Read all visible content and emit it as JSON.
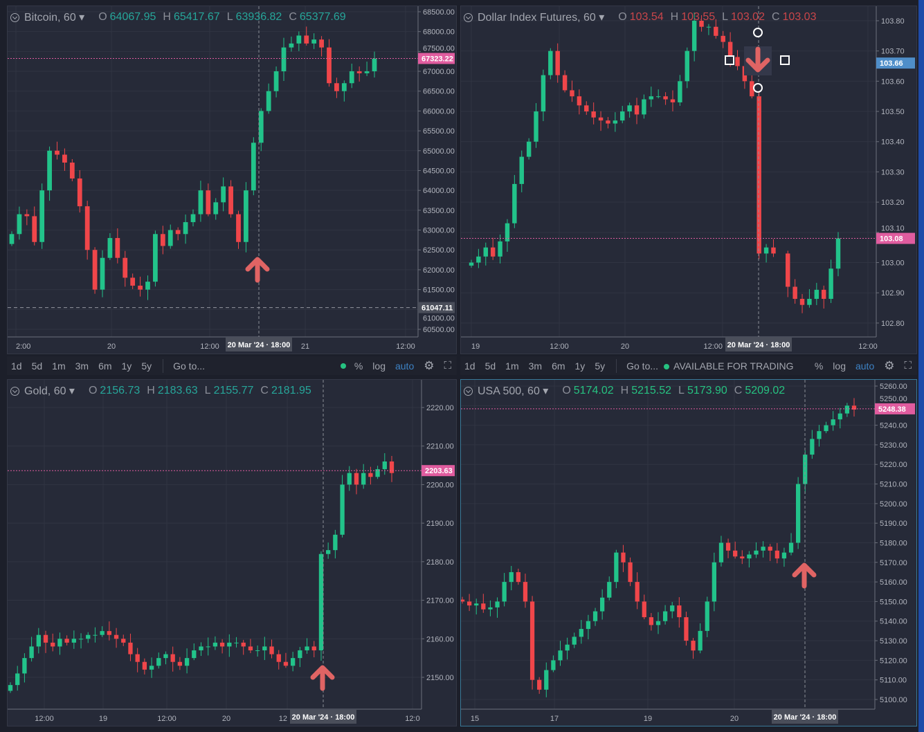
{
  "colors": {
    "up": "#26a69a",
    "up_body": "#22c38a",
    "down": "#f0464a",
    "price_label": "#e05c9f",
    "price_label_blue": "#4f8ec9",
    "arrow": "#e06464",
    "bg": "#262a38"
  },
  "toolbar": {
    "ranges": [
      "1d",
      "5d",
      "1m",
      "3m",
      "6m",
      "1y",
      "5y"
    ],
    "goto": "Go to...",
    "status": "AVAILABLE FOR TRADING",
    "percent": "%",
    "log": "log",
    "auto": "auto",
    "settings_icon": "gear-icon",
    "fullscreen_icon": "fullscreen-icon"
  },
  "crosshair_label": "20 Mar '24 · 18:00",
  "charts": [
    {
      "symbol": "Bitcoin, 60",
      "o": "64067.95",
      "h": "65417.67",
      "l": "63936.82",
      "c": "65377.69",
      "ohlc_color": "#26a69a",
      "price_ticks": [
        "68500.00",
        "68000.00",
        "67500.00",
        "67000.00",
        "66500.00",
        "66000.00",
        "65500.00",
        "65000.00",
        "64500.00",
        "64000.00",
        "63500.00",
        "63000.00",
        "62500.00",
        "62000.00",
        "61500.00",
        "61000.00",
        "60500.00"
      ],
      "time_ticks": [
        "2:00",
        "20",
        "12:00",
        "21",
        "12:00"
      ],
      "last_price": "67323.22",
      "marker_price": "61047.11",
      "annotation": "arrow-up",
      "ylim": [
        60308,
        68639
      ],
      "closes": [
        62900,
        63400,
        63350,
        62700,
        64000,
        65000,
        64900,
        64700,
        64300,
        63600,
        62500,
        61500,
        62300,
        62800,
        62300,
        61800,
        61600,
        61500,
        61700,
        62900,
        62600,
        63000,
        62900,
        63200,
        63400,
        64000,
        63400,
        63700,
        64100,
        63400,
        62700,
        64000,
        65200,
        66000,
        66500,
        67000,
        67600,
        67700,
        67900,
        67700,
        67800,
        67600,
        66700,
        66500,
        66700,
        67000,
        66950,
        67000,
        67320
      ]
    },
    {
      "symbol": "Dollar Index Futures, 60",
      "o": "103.54",
      "h": "103.55",
      "l": "103.02",
      "c": "103.03",
      "ohlc_color": "#c9464a",
      "price_ticks": [
        "103.80",
        "103.70",
        "103.60",
        "103.50",
        "103.40",
        "103.30",
        "103.20",
        "103.10",
        "103.00",
        "102.90",
        "102.80"
      ],
      "time_ticks": [
        "19",
        "12:00",
        "20",
        "12:00",
        "12:00"
      ],
      "last_price": "103.08",
      "crosshair_price": "103.66",
      "annotation": "arrow-down",
      "ylim": [
        102.754,
        103.848
      ],
      "closes": [
        103.0,
        103.02,
        103.05,
        103.02,
        103.07,
        103.13,
        103.26,
        103.35,
        103.4,
        103.5,
        103.62,
        103.7,
        103.62,
        103.57,
        103.55,
        103.52,
        103.5,
        103.48,
        103.47,
        103.46,
        103.47,
        103.5,
        103.52,
        103.49,
        103.54,
        103.55,
        103.55,
        103.54,
        103.53,
        103.6,
        103.7,
        103.8,
        103.78,
        103.78,
        103.75,
        103.73,
        103.68,
        103.65,
        103.6,
        103.55,
        103.03,
        103.05,
        103.03,
        null,
        102.92,
        102.88,
        102.86,
        102.88,
        102.91,
        102.88,
        102.98,
        103.08
      ]
    },
    {
      "symbol": "Gold, 60",
      "o": "2156.73",
      "h": "2183.63",
      "l": "2155.77",
      "c": "2181.95",
      "ohlc_color": "#26a69a",
      "price_ticks": [
        "2220.00",
        "2210.00",
        "2200.00",
        "2190.00",
        "2180.00",
        "2170.00",
        "2160.00",
        "2150.00"
      ],
      "time_ticks": [
        "12:00",
        "19",
        "12:00",
        "20",
        "12",
        "12:0"
      ],
      "last_price": "2203.63",
      "annotation": "arrow-up",
      "ylim": [
        2141.74,
        2227.18
      ],
      "closes": [
        2148,
        2151,
        2155,
        2158,
        2161,
        2159,
        2158,
        2160,
        2159,
        2160,
        2160,
        2161,
        2161,
        2162,
        2161,
        2160,
        2159,
        2156,
        2154,
        2152,
        2153,
        2155,
        2156,
        2154,
        2153,
        2155,
        2157,
        2158,
        2158,
        2159,
        2158,
        2159,
        2159,
        2158,
        2157,
        2157,
        2158,
        2156,
        2154,
        2153,
        2155,
        2157,
        2158,
        2157,
        2182,
        2183,
        2187,
        2200,
        2203,
        2200,
        2203,
        2202,
        2204,
        2206,
        2203
      ]
    },
    {
      "symbol": "USA 500, 60",
      "o": "5174.02",
      "h": "5215.52",
      "l": "5173.90",
      "c": "5209.02",
      "ohlc_color": "#26c281",
      "price_ticks": [
        "5260.00",
        "5250.00",
        "5240.00",
        "5230.00",
        "5220.00",
        "5210.00",
        "5200.00",
        "5190.00",
        "5180.00",
        "5170.00",
        "5160.00",
        "5150.00",
        "5140.00",
        "5130.00",
        "5120.00",
        "5110.00",
        "5100.00"
      ],
      "time_ticks": [
        "15",
        "17",
        "19",
        "20"
      ],
      "last_price": "5248.38",
      "annotation": "arrow-up",
      "ylim": [
        5095.05,
        5263.18
      ],
      "closes": [
        5150,
        5148,
        5149,
        5146,
        5147,
        5150,
        5160,
        5165,
        5160,
        5150,
        5110,
        5105,
        5115,
        5120,
        5125,
        5128,
        5132,
        5136,
        5140,
        5145,
        5152,
        5160,
        5175,
        5170,
        5160,
        5150,
        5142,
        5138,
        5140,
        5145,
        5148,
        5142,
        5130,
        5125,
        5135,
        5150,
        5170,
        5180,
        5176,
        5173,
        5172,
        5174,
        5176,
        5178,
        5176,
        5172,
        5175,
        5180,
        5210,
        5225,
        5233,
        5237,
        5240,
        5243,
        5246,
        5250,
        5248
      ]
    }
  ]
}
